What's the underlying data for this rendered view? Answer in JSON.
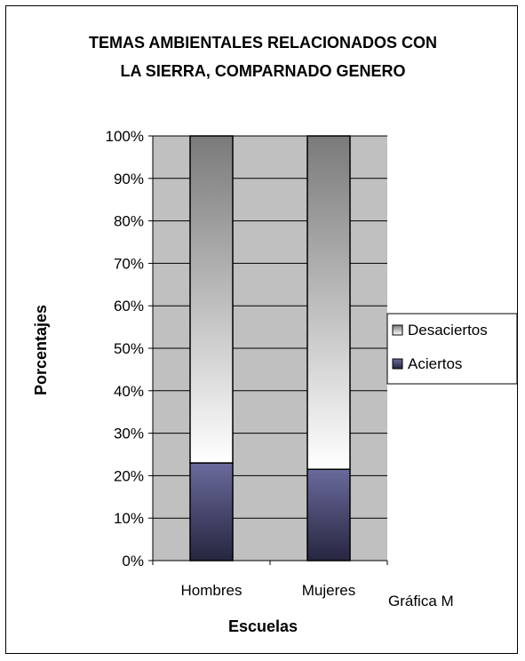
{
  "chart_data": {
    "type": "bar",
    "stacked": true,
    "percent_stacked": true,
    "title_lines": [
      "TEMAS AMBIENTALES RELACIONADOS CON",
      "LA SIERRA, COMPARNADO GENERO"
    ],
    "xlabel": "Escuelas",
    "ylabel": "Porcentajes",
    "categories": [
      "Hombres",
      "Mujeres"
    ],
    "series": [
      {
        "name": "Aciertos",
        "values": [
          23,
          21.5
        ]
      },
      {
        "name": "Desaciertos",
        "values": [
          77,
          78.5
        ]
      }
    ],
    "ylim": [
      0,
      100
    ],
    "yticks": [
      "0%",
      "10%",
      "20%",
      "30%",
      "40%",
      "50%",
      "60%",
      "70%",
      "80%",
      "90%",
      "100%"
    ],
    "grid": true,
    "legend": "right",
    "legend_entries": [
      "Desaciertos",
      "Aciertos"
    ],
    "note": "Gráfica M",
    "colors": {
      "plot_background": "#c0c0c0",
      "aciertos_top": "#6a6a9c",
      "aciertos_bottom": "#262640",
      "desaciertos_top": "#7a7a7a",
      "desaciertos_bottom": "#ffffff"
    }
  }
}
